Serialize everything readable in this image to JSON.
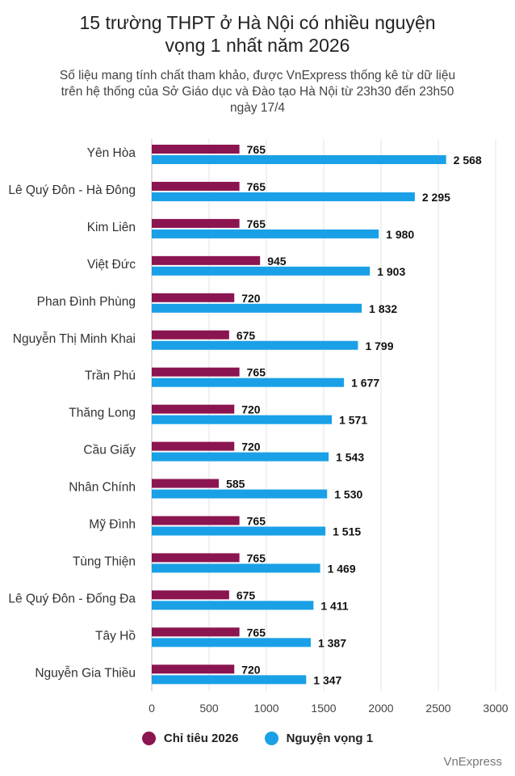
{
  "header": {
    "title_line1": "15 trường THPT ở Hà Nội có nhiều nguyện",
    "title_line2": "vọng 1 nhất năm 2026",
    "subtitle_line1": "Số liệu mang tính chất tham khảo, được VnExpress thống kê từ dữ liệu",
    "subtitle_line2": "trên hệ thống của Sở Giáo dục và Đào tạo Hà Nội từ 23h30 đến 23h50",
    "subtitle_line3": "ngày 17/4"
  },
  "chart_data": {
    "type": "bar",
    "orientation": "horizontal",
    "categories": [
      "Yên Hòa",
      "Lê Quý Đôn - Hà Đông",
      "Kim Liên",
      "Việt Đức",
      "Phan Đình Phùng",
      "Nguyễn Thị Minh Khai",
      "Trần Phú",
      "Thăng Long",
      "Cầu Giấy",
      "Nhân Chính",
      "Mỹ Đình",
      "Tùng Thiện",
      "Lê Quý Đôn - Đống Đa",
      "Tây Hồ",
      "Nguyễn Gia Thiều"
    ],
    "series": [
      {
        "name": "Chỉ tiêu 2026",
        "color": "#8b1550",
        "values": [
          765,
          765,
          765,
          945,
          720,
          675,
          765,
          720,
          720,
          585,
          765,
          765,
          675,
          765,
          720
        ],
        "labels": [
          "765",
          "765",
          "765",
          "945",
          "720",
          "675",
          "765",
          "720",
          "720",
          "585",
          "765",
          "765",
          "675",
          "765",
          "720"
        ]
      },
      {
        "name": "Nguyện vọng 1",
        "color": "#1aa0e6",
        "values": [
          2568,
          2295,
          1980,
          1903,
          1832,
          1799,
          1677,
          1571,
          1543,
          1530,
          1515,
          1469,
          1411,
          1387,
          1347
        ],
        "labels": [
          "2 568",
          "2 295",
          "1 980",
          "1 903",
          "1 832",
          "1 799",
          "1 677",
          "1 571",
          "1 543",
          "1 530",
          "1 515",
          "1 469",
          "1 411",
          "1 387",
          "1 347"
        ]
      }
    ],
    "xlim": [
      0,
      3000
    ],
    "xticks": [
      0,
      500,
      1000,
      1500,
      2000,
      2500,
      3000
    ],
    "xtick_labels": [
      "0",
      "500",
      "1000",
      "1500",
      "2000",
      "2500",
      "3000"
    ],
    "grid": true,
    "legend_position": "bottom-center"
  },
  "footer": {
    "source": "VnExpress"
  }
}
